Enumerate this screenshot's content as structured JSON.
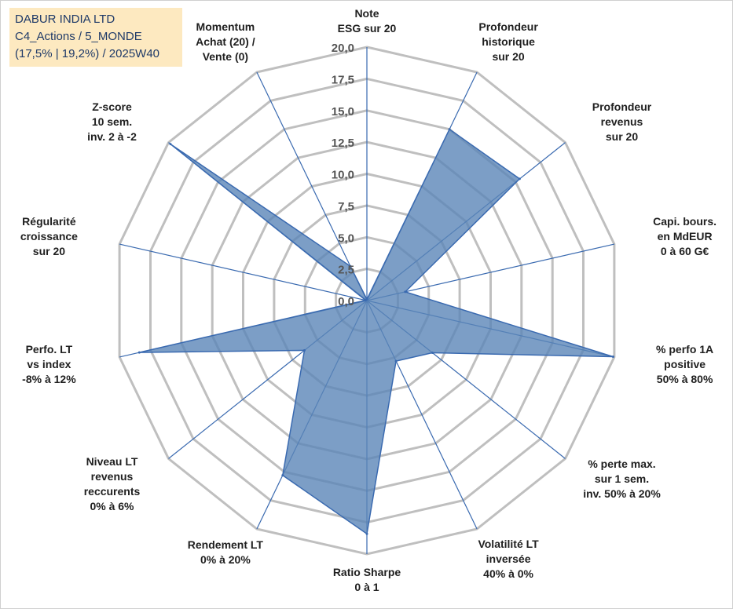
{
  "info": {
    "line1": "DABUR INDIA LTD",
    "line2": "C4_Actions / 5_MONDE",
    "line3": "(17,5% | 19,2%) / 2025W40"
  },
  "colors": {
    "fill": "#5b86b8",
    "stroke": "#3a6ab0",
    "grid": "#bfbfbf",
    "spoke": "#3a6ab0"
  },
  "chart_data": {
    "type": "radar",
    "rlim": [
      0,
      20
    ],
    "grid": true,
    "ticks": [
      "0,0",
      "2,5",
      "5,0",
      "7,5",
      "10,0",
      "12,5",
      "15,0",
      "17,5",
      "20,0"
    ],
    "axes": [
      "Note\nESG sur 20",
      "Profondeur\nhistorique\nsur 20",
      "Profondeur\nrevenus\nsur 20",
      "Capi. bours.\nen MdEUR\n0 à 60 G€",
      "% perfo 1A\npositive\n50% à 80%",
      "% perte max.\nsur 1 sem.\ninv. 50% à 20%",
      "Volatilité LT\ninversée\n40% à 0%",
      "Ratio Sharpe\n0 à 1",
      "Rendement LT\n0% à 20%",
      "Niveau LT\nrevenus\nreccurents\n0% à 6%",
      "Perfo. LT\nvs index\n-8% à 12%",
      "Régularité\ncroissance\nsur 20",
      "Z-score\n10 sem.\ninv. 2 à -2",
      "Momentum\nAchat (20) /\nVente (0)"
    ],
    "values": [
      0.1,
      15.0,
      15.4,
      3.1,
      19.9,
      6.6,
      5.3,
      18.4,
      15.3,
      6.3,
      18.4,
      0.1,
      19.8,
      3.0
    ]
  }
}
